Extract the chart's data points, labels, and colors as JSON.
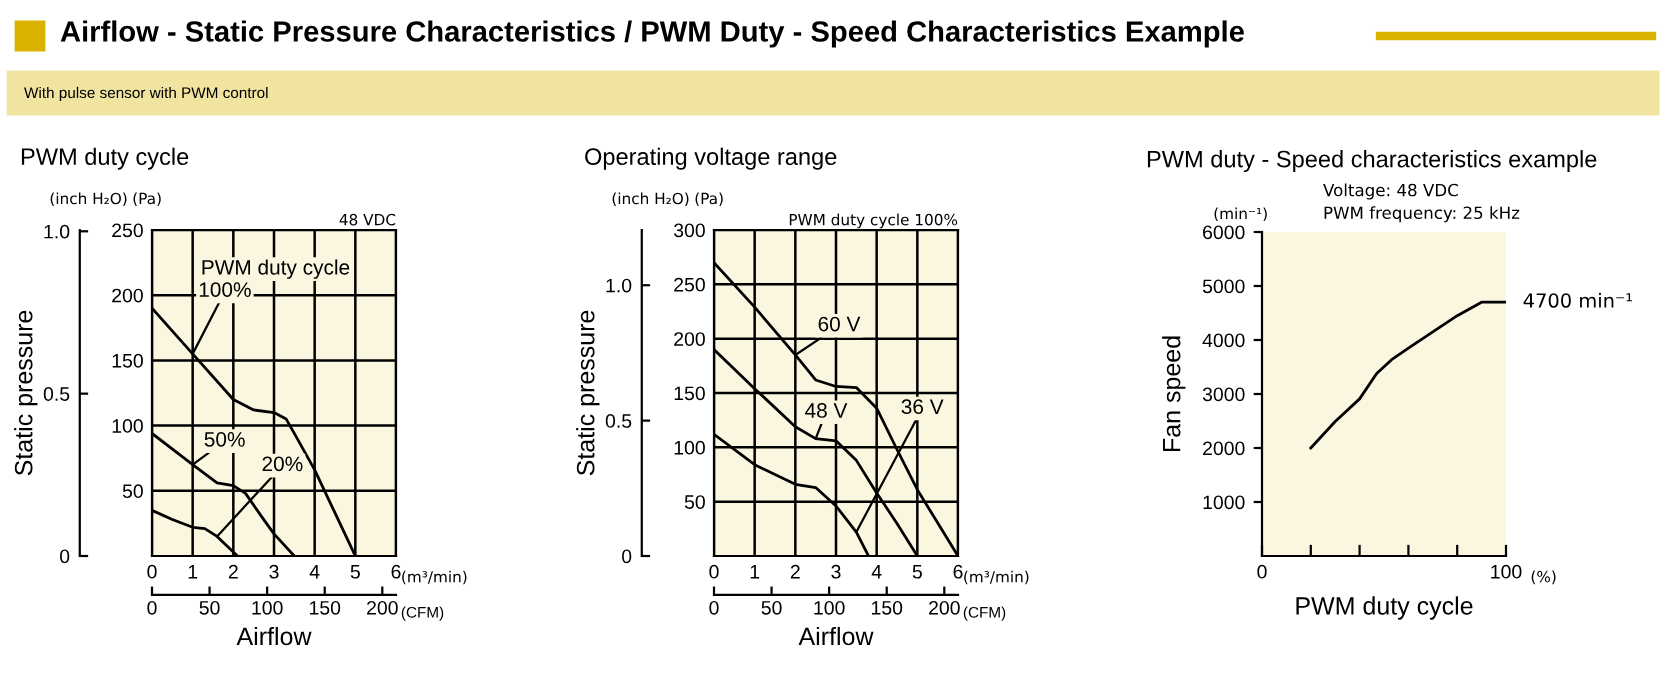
{
  "chart_data": [
    {
      "type": "line",
      "title": "PWM duty cycle",
      "xlabel": "Airflow",
      "y2label": "Static pressure",
      "x2label": "(CFM)",
      "legend_title": "PWM duty cycle",
      "annotations": [
        "Airflow - Static Pressure Characteristics / PWM Duty - Speed Characteristics Example",
        "With pulse sensor with PWM control",
        "(Pa)",
        "(m³/min)",
        "48 VDC",
        "(inch H₂O)"
      ],
      "xlim": [
        0,
        6
      ],
      "xticks": [
        0,
        1,
        2,
        3,
        4,
        5,
        6
      ],
      "ylim": [
        0,
        250
      ],
      "yticks": [
        50,
        100,
        150,
        200,
        250
      ],
      "y2lim": [
        0,
        1.004
      ],
      "y2ticks": [
        0,
        0.5,
        {
          "value": 1.0,
          "label": "1.0"
        }
      ],
      "x2lim": [
        0,
        211.9
      ],
      "x2ticks": [
        0,
        50,
        100,
        150,
        200
      ],
      "grid": true,
      "legend": false,
      "marker": "none",
      "line_style": "solid",
      "series": [
        {
          "name": "100%",
          "color": "#000000",
          "x": [
            0,
            1,
            2,
            2.5,
            3,
            3.3,
            3.5,
            4,
            4.5,
            5
          ],
          "values": [
            190,
            155,
            120,
            112,
            110,
            105,
            94,
            66,
            33,
            0
          ]
        },
        {
          "name": "50%",
          "color": "#000000",
          "x": [
            0,
            1,
            1.6,
            2,
            2.3,
            2.7,
            3,
            3.5
          ],
          "values": [
            94,
            70,
            56,
            54,
            48,
            30,
            17,
            0
          ]
        },
        {
          "name": "20%",
          "color": "#000000",
          "x": [
            0,
            0.5,
            1,
            1.3,
            1.6,
            2,
            2.1
          ],
          "values": [
            35,
            28,
            22,
            21,
            15,
            3,
            0
          ]
        }
      ]
    },
    {
      "type": "line",
      "title": "Operating voltage range",
      "xlabel": "Airflow",
      "y2label": "Static pressure",
      "x2label": "(CFM)",
      "annotations": [
        "(Pa)",
        "(m³/min)",
        "PWM duty cycle 100%",
        "(inch H₂O)"
      ],
      "xlim": [
        0,
        6
      ],
      "xticks": [
        0,
        1,
        2,
        3,
        4,
        5,
        6
      ],
      "ylim": [
        0,
        300
      ],
      "yticks": [
        50,
        100,
        150,
        200,
        250,
        300
      ],
      "y2lim": [
        0,
        1.204
      ],
      "y2ticks": [
        0,
        0.5,
        {
          "value": 1.0,
          "label": "1.0"
        }
      ],
      "x2lim": [
        0,
        211.9
      ],
      "x2ticks": [
        0,
        50,
        100,
        150,
        200
      ],
      "grid": true,
      "legend": false,
      "marker": "none",
      "line_style": "solid",
      "series": [
        {
          "name": "60 V",
          "color": "#000000",
          "x": [
            0,
            1,
            2,
            2.5,
            3,
            3.5,
            4,
            4.5,
            5,
            6
          ],
          "values": [
            270,
            229,
            185,
            162,
            156,
            155,
            136,
            98,
            61,
            0
          ]
        },
        {
          "name": "48 V",
          "color": "#000000",
          "x": [
            0,
            1,
            2,
            2.5,
            3,
            3.5,
            4,
            4.5,
            5
          ],
          "values": [
            190,
            154,
            119,
            108,
            106,
            88,
            58,
            30,
            0
          ]
        },
        {
          "name": "36 V",
          "color": "#000000",
          "x": [
            0,
            1,
            2,
            2.5,
            3,
            3.5,
            3.8
          ],
          "values": [
            112,
            84,
            66,
            63,
            46,
            22,
            0
          ]
        }
      ]
    },
    {
      "type": "line",
      "title": "PWM duty - Speed characteristics example",
      "xlabel": "PWM duty cycle",
      "ylabel": "Fan speed",
      "annotations": [
        "Voltage: 48 VDC",
        "PWM frequency: 25 kHz",
        "(min⁻¹)",
        "(%)",
        {
          "text": "4700 min⁻¹",
          "x": 100,
          "y": 4700
        }
      ],
      "xlim": [
        0,
        100
      ],
      "xticks": [
        0,
        {
          "value": 20,
          "label": null
        },
        {
          "value": 40,
          "label": null
        },
        {
          "value": 60,
          "label": null
        },
        {
          "value": 80,
          "label": null
        },
        100
      ],
      "ylim": [
        0,
        6000
      ],
      "yticks": [
        1000,
        2000,
        3000,
        4000,
        5000,
        6000
      ],
      "grid": false,
      "legend": false,
      "marker": "none",
      "line_style": "solid",
      "series": [
        {
          "color": "#000000",
          "x": [
            20,
            30,
            40,
            47,
            53,
            60,
            70,
            80,
            90,
            100
          ],
          "values": [
            2000,
            2490,
            2910,
            3380,
            3630,
            3850,
            4150,
            4450,
            4700,
            4700
          ]
        }
      ]
    }
  ]
}
